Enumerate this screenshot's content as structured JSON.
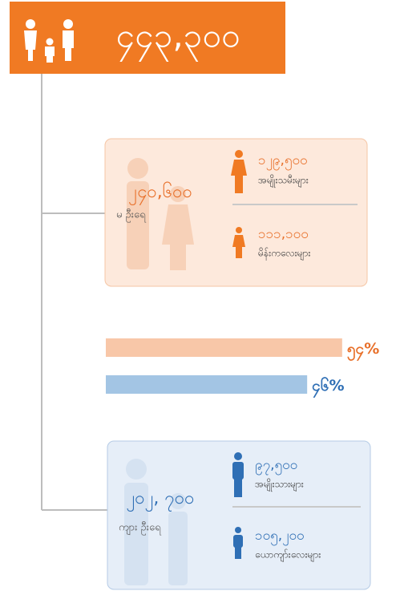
{
  "header": {
    "total": "၄၄၃,၃၀၀"
  },
  "female": {
    "total": "၂၄၀,၆၀၀",
    "label": "မ ဦးရေ",
    "groups": [
      {
        "value": "၁၂၉,၅၀၀",
        "label": "အမျိုးသမီးများ"
      },
      {
        "value": "၁၁၁,၁၀၀",
        "label": "မိန်းကလေးများ"
      }
    ]
  },
  "bars": [
    {
      "value": 54,
      "label": "၅၄%",
      "color": "#f8c7a8",
      "text_color": "#e8702a"
    },
    {
      "value": 46,
      "label": "၄၆%",
      "color": "#a3c5e4",
      "text_color": "#2f6fb5"
    }
  ],
  "male": {
    "total": "၂၀၂, ၇၀၀",
    "label": "ကျား ဦးရေ",
    "groups": [
      {
        "value": "၉၇,၅၀၀",
        "label": "အမျိုးသားများ"
      },
      {
        "value": "၁၀၅,၂၀၀",
        "label": "ယောကျာ်းလေးများ"
      }
    ]
  }
}
